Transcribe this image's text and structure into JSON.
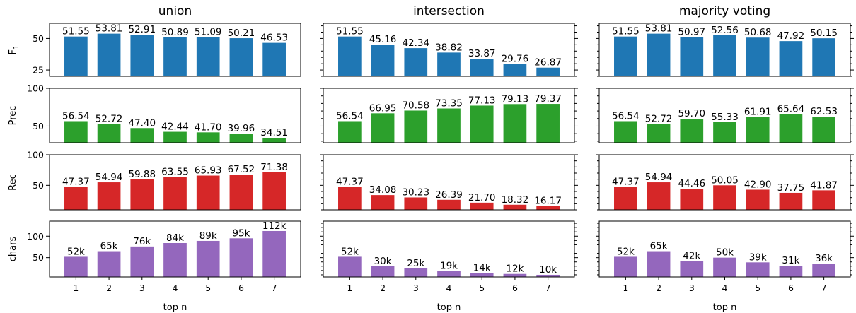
{
  "chart_data": {
    "type": "bar",
    "categories": [
      "1",
      "2",
      "3",
      "4",
      "5",
      "6",
      "7"
    ],
    "xlabel": "top n",
    "columns": [
      "union",
      "intersection",
      "majority voting"
    ],
    "colors": {
      "F1": "#1f77b4",
      "Prec": "#2ca02c",
      "Rec": "#d62728",
      "chars": "#9467bd"
    },
    "rows": [
      {
        "metric": "F1",
        "ylabel_base": "F",
        "ylabel_sub": "1",
        "ylim": [
          20,
          62
        ],
        "yticks": [
          25,
          50
        ],
        "values": [
          [
            51.55,
            53.81,
            52.91,
            50.89,
            51.09,
            50.21,
            46.53
          ],
          [
            51.55,
            45.16,
            42.34,
            38.82,
            33.87,
            29.76,
            26.87
          ],
          [
            51.55,
            53.81,
            50.97,
            52.56,
            50.68,
            47.92,
            50.15
          ]
        ],
        "labels": [
          [
            "51.55",
            "53.81",
            "52.91",
            "50.89",
            "51.09",
            "50.21",
            "46.53"
          ],
          [
            "51.55",
            "45.16",
            "42.34",
            "38.82",
            "33.87",
            "29.76",
            "26.87"
          ],
          [
            "51.55",
            "53.81",
            "50.97",
            "52.56",
            "50.68",
            "47.92",
            "50.15"
          ]
        ]
      },
      {
        "metric": "Prec",
        "ylabel_base": "Prec",
        "ylabel_sub": "",
        "ylim": [
          28,
          100
        ],
        "yticks": [
          50,
          100
        ],
        "values": [
          [
            56.54,
            52.72,
            47.4,
            42.44,
            41.7,
            39.96,
            34.51
          ],
          [
            56.54,
            66.95,
            70.58,
            73.35,
            77.13,
            79.13,
            79.37
          ],
          [
            56.54,
            52.72,
            59.7,
            55.33,
            61.91,
            65.64,
            62.53
          ]
        ],
        "labels": [
          [
            "56.54",
            "52.72",
            "47.40",
            "42.44",
            "41.70",
            "39.96",
            "34.51"
          ],
          [
            "56.54",
            "66.95",
            "70.58",
            "73.35",
            "77.13",
            "79.13",
            "79.37"
          ],
          [
            "56.54",
            "52.72",
            "59.70",
            "55.33",
            "61.91",
            "65.64",
            "62.53"
          ]
        ]
      },
      {
        "metric": "Rec",
        "ylabel_base": "Rec",
        "ylabel_sub": "",
        "ylim": [
          10,
          100
        ],
        "yticks": [
          50,
          100
        ],
        "values": [
          [
            47.37,
            54.94,
            59.88,
            63.55,
            65.93,
            67.52,
            71.38
          ],
          [
            47.37,
            34.08,
            30.23,
            26.39,
            21.7,
            18.32,
            16.17
          ],
          [
            47.37,
            54.94,
            44.46,
            50.05,
            42.9,
            37.75,
            41.87
          ]
        ],
        "labels": [
          [
            "47.37",
            "54.94",
            "59.88",
            "63.55",
            "65.93",
            "67.52",
            "71.38"
          ],
          [
            "47.37",
            "34.08",
            "30.23",
            "26.39",
            "21.70",
            "18.32",
            "16.17"
          ],
          [
            "47.37",
            "54.94",
            "44.46",
            "50.05",
            "42.90",
            "37.75",
            "41.87"
          ]
        ]
      },
      {
        "metric": "chars",
        "ylabel_base": "chars",
        "ylabel_sub": "",
        "ylim": [
          5,
          135
        ],
        "yticks": [
          50,
          100
        ],
        "values": [
          [
            52,
            65,
            76,
            84,
            89,
            95,
            112
          ],
          [
            52,
            30,
            25,
            19,
            14,
            12,
            10
          ],
          [
            52,
            65,
            42,
            50,
            39,
            31,
            36
          ]
        ],
        "labels": [
          [
            "52k",
            "65k",
            "76k",
            "84k",
            "89k",
            "95k",
            "112k"
          ],
          [
            "52k",
            "30k",
            "25k",
            "19k",
            "14k",
            "12k",
            "10k"
          ],
          [
            "52k",
            "65k",
            "42k",
            "50k",
            "39k",
            "31k",
            "36k"
          ]
        ]
      }
    ]
  }
}
